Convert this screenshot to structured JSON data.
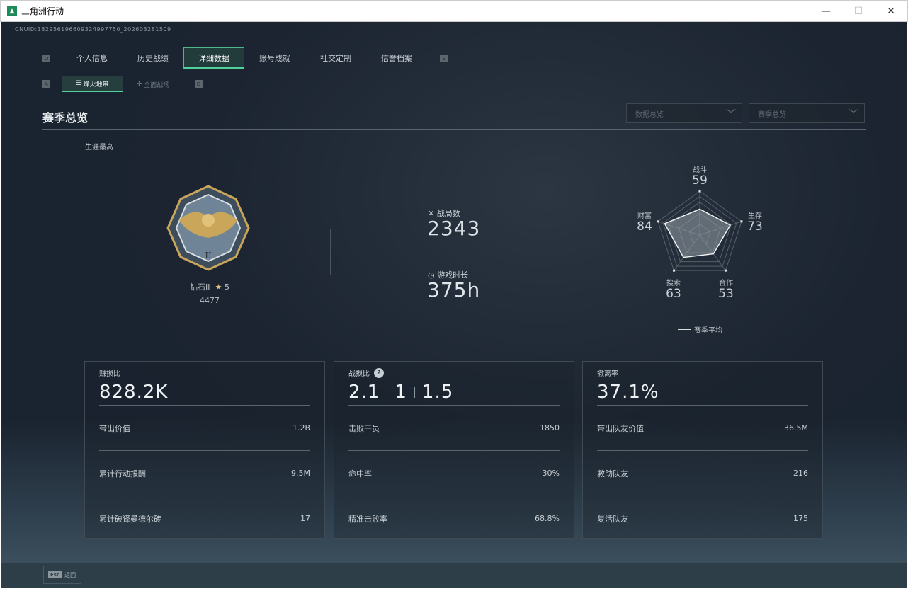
{
  "window": {
    "title": "三角洲行动",
    "minimize": "—",
    "maximize": "☐",
    "close": "✕"
  },
  "uid": "CNUID:182956196609324997750_202603281509",
  "keys": {
    "prev_tab": "Q",
    "next_tab": "E",
    "prev_sub": "A",
    "next_sub": "D"
  },
  "tabs": [
    {
      "label": "个人信息"
    },
    {
      "label": "历史战绩"
    },
    {
      "label": "详细数据",
      "active": true
    },
    {
      "label": "账号成就"
    },
    {
      "label": "社交定制"
    },
    {
      "label": "信誉档案"
    }
  ],
  "subtabs": [
    {
      "label": "烽火地带",
      "active": true
    },
    {
      "label": "全面战场"
    }
  ],
  "section_title": "赛季总览",
  "dropdowns": [
    {
      "value": "数据总览"
    },
    {
      "value": "赛季总览"
    }
  ],
  "career": {
    "label": "生涯最高",
    "rank": "钻石II",
    "stars": "5",
    "score": "4477"
  },
  "stats": {
    "matches_label": "战局数",
    "matches": "2343",
    "time_label": "游戏时长",
    "time": "375h"
  },
  "radar": {
    "axes": [
      {
        "label": "战斗",
        "value": 59
      },
      {
        "label": "生存",
        "value": 73
      },
      {
        "label": "合作",
        "value": 53
      },
      {
        "label": "搜索",
        "value": 63
      },
      {
        "label": "财富",
        "value": 84
      }
    ],
    "legend": "赛季平均"
  },
  "cards": [
    {
      "title": "赚损比",
      "big": [
        "828.2K"
      ],
      "rows": [
        {
          "label": "带出价值",
          "value": "1.2B"
        },
        {
          "label": "累计行动报酬",
          "value": "9.5M"
        },
        {
          "label": "累计破译曼德尔砖",
          "value": "17"
        }
      ]
    },
    {
      "title": "战损比",
      "help": "?",
      "big": [
        "2.1",
        "1",
        "1.5"
      ],
      "rows": [
        {
          "label": "击败干员",
          "value": "1850"
        },
        {
          "label": "命中率",
          "value": "30%"
        },
        {
          "label": "精准击败率",
          "value": "68.8%"
        }
      ]
    },
    {
      "title": "撤离率",
      "big": [
        "37.1%"
      ],
      "rows": [
        {
          "label": "带出队友价值",
          "value": "36.5M"
        },
        {
          "label": "救助队友",
          "value": "216"
        },
        {
          "label": "复活队友",
          "value": "175"
        }
      ]
    }
  ],
  "footer": {
    "key": "Esc",
    "label": "返回"
  }
}
